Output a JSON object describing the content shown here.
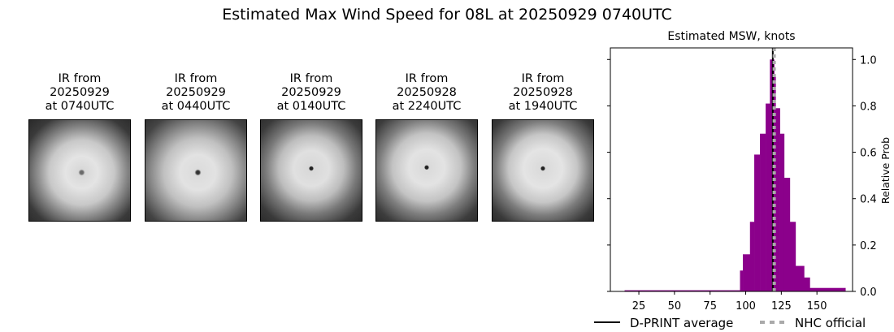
{
  "title": "Estimated Max Wind Speed for 08L at 20250929 0740UTC",
  "ir_panels": [
    {
      "line1": "IR from",
      "line2": "20250929",
      "line3": "at 0740UTC"
    },
    {
      "line1": "IR from",
      "line2": "20250929",
      "line3": "at 0440UTC"
    },
    {
      "line1": "IR from",
      "line2": "20250929",
      "line3": "at 0140UTC"
    },
    {
      "line1": "IR from",
      "line2": "20250928",
      "line3": "at 2240UTC"
    },
    {
      "line1": "IR from",
      "line2": "20250928",
      "line3": "at 1940UTC"
    }
  ],
  "chart_data": {
    "type": "bar",
    "title": "Estimated MSW, knots",
    "xlabel": "",
    "ylabel": "Relative Prob",
    "xlim": [
      5,
      175
    ],
    "ylim": [
      0,
      1.05
    ],
    "xticks": [
      25,
      50,
      75,
      100,
      125,
      150
    ],
    "yticks": [
      0.0,
      0.2,
      0.4,
      0.6,
      0.8,
      1.0
    ],
    "bar_color": "#8b008b",
    "bins": [
      {
        "x0": 15,
        "x1": 96,
        "value": 0.005
      },
      {
        "x0": 96,
        "x1": 98,
        "value": 0.09
      },
      {
        "x0": 98,
        "x1": 103,
        "value": 0.16
      },
      {
        "x0": 103,
        "x1": 106,
        "value": 0.3
      },
      {
        "x0": 106,
        "x1": 110,
        "value": 0.59
      },
      {
        "x0": 110,
        "x1": 114,
        "value": 0.68
      },
      {
        "x0": 114,
        "x1": 117,
        "value": 0.81
      },
      {
        "x0": 117,
        "x1": 120,
        "value": 1.0
      },
      {
        "x0": 120,
        "x1": 121,
        "value": 0.93
      },
      {
        "x0": 121,
        "x1": 124,
        "value": 0.79
      },
      {
        "x0": 124,
        "x1": 127,
        "value": 0.68
      },
      {
        "x0": 127,
        "x1": 131,
        "value": 0.49
      },
      {
        "x0": 131,
        "x1": 135,
        "value": 0.3
      },
      {
        "x0": 135,
        "x1": 141,
        "value": 0.11
      },
      {
        "x0": 141,
        "x1": 145,
        "value": 0.06
      },
      {
        "x0": 145,
        "x1": 170,
        "value": 0.015
      }
    ],
    "lines": [
      {
        "name": "D-PRINT average",
        "x": 119,
        "color": "#000000",
        "style": "solid"
      },
      {
        "name": "NHC official",
        "x": 120,
        "color": "#aaaaaa",
        "style": "dotted"
      }
    ],
    "legend": [
      "D-PRINT average",
      "NHC official"
    ],
    "legend_position": "below"
  }
}
